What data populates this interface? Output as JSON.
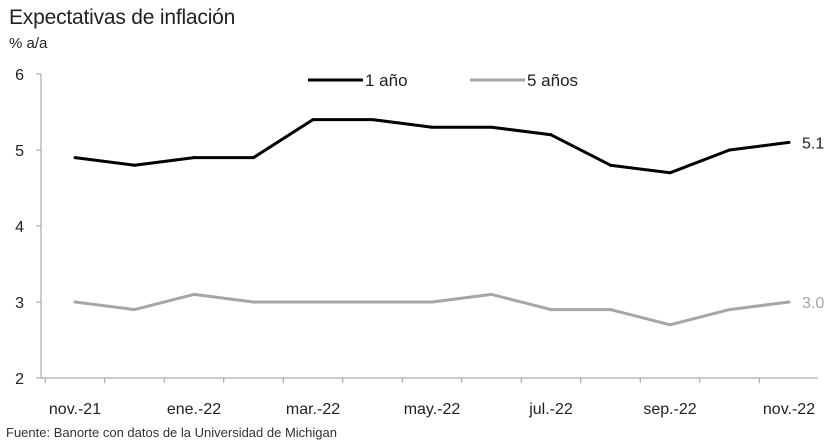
{
  "title": "Expectativas de inflación",
  "subtitle": "% a/a",
  "source": "Fuente: Banorte con datos de la Universidad de Michigan",
  "chart_data": {
    "type": "line",
    "x": [
      "nov.-21",
      "dic.-21",
      "ene.-22",
      "feb.-22",
      "mar.-22",
      "abr.-22",
      "may.-22",
      "jun.-22",
      "jul.-22",
      "ago.-22",
      "sep.-22",
      "oct.-22",
      "nov.-22"
    ],
    "tick_labels": [
      "nov.-21",
      "ene.-22",
      "mar.-22",
      "may.-22",
      "jul.-22",
      "sep.-22",
      "nov.-22"
    ],
    "ylim": [
      2,
      6
    ],
    "yticks": [
      2,
      3,
      4,
      5,
      6
    ],
    "grid": false,
    "legend_position": "top-center",
    "series": [
      {
        "name": "1 año",
        "color": "#000000",
        "values": [
          4.9,
          4.8,
          4.9,
          4.9,
          5.4,
          5.4,
          5.3,
          5.3,
          5.2,
          4.8,
          4.7,
          5.0,
          5.1
        ],
        "end_label": "5.1",
        "label_color": "#222222"
      },
      {
        "name": "5 años",
        "color": "#a6a6a6",
        "values": [
          3.0,
          2.9,
          3.1,
          3.0,
          3.0,
          3.0,
          3.0,
          3.1,
          2.9,
          2.9,
          2.7,
          2.9,
          3.0
        ],
        "end_label": "3.0",
        "label_color": "#a6a6a6"
      }
    ]
  }
}
